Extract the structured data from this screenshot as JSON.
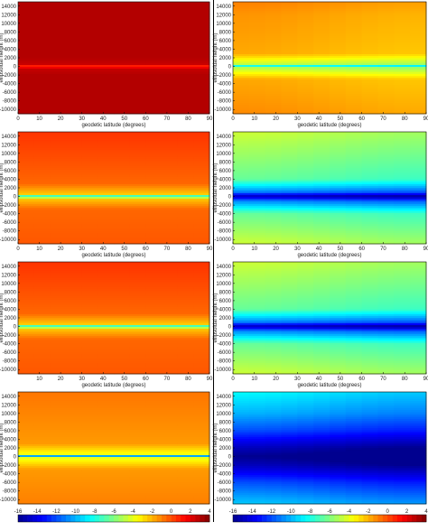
{
  "palette": [
    "#00008f",
    "#0000ff",
    "#0080ff",
    "#00ffff",
    "#80ff80",
    "#ffff00",
    "#ff8000",
    "#ff0000",
    "#800000"
  ],
  "chart_data": [
    {
      "type": "heatmap",
      "panel": "left-1",
      "xlabel": "geodetic latitude (degrees)",
      "ylabel": "ellipsoidal height (m)",
      "xlim": [
        0,
        90
      ],
      "ylim": [
        -11000,
        15000
      ],
      "xticks": [
        "0",
        "10",
        "20",
        "30",
        "40",
        "50",
        "60",
        "70",
        "80",
        "90"
      ],
      "yticks": [
        "-10000",
        "-8000",
        "-6000",
        "-4000",
        "-2000",
        "0",
        "2000",
        "4000",
        "6000",
        "8000",
        "10000",
        "12000",
        "14000"
      ],
      "profile": {
        "h": [
          -11000,
          -6000,
          -2000,
          -500,
          0,
          500,
          2000,
          6000,
          15000
        ],
        "v": [
          3,
          3,
          3,
          2.6,
          0.5,
          2.6,
          3,
          3,
          3
        ]
      },
      "lat_effect": 0
    },
    {
      "type": "heatmap",
      "panel": "right-1",
      "xlabel": "geodetic latitude (degrees)",
      "ylabel": "ellipsoidal height (m)",
      "xlim": [
        0,
        90
      ],
      "ylim": [
        -11000,
        15000
      ],
      "xticks": [
        "0",
        "10",
        "20",
        "30",
        "40",
        "50",
        "60",
        "70",
        "80",
        "90"
      ],
      "yticks": [
        "-10000",
        "-8000",
        "-6000",
        "-4000",
        "-2000",
        "0",
        "2000",
        "4000",
        "6000",
        "8000",
        "10000",
        "12000",
        "14000"
      ],
      "profile": {
        "h": [
          -11000,
          -3000,
          -300,
          0,
          300,
          3000,
          12000,
          15000
        ],
        "v": [
          -1.2,
          -1.8,
          -5,
          -10,
          -5,
          -1.8,
          -1.4,
          -1.0
        ]
      },
      "lat_effect": -0.6
    },
    {
      "type": "heatmap",
      "panel": "left-2",
      "xlabel": "geodetic latitude (degrees)",
      "ylabel": "ellipsoidal height (m)",
      "xlim": [
        0,
        90
      ],
      "ylim": [
        -11000,
        15000
      ],
      "xticks": [
        "0",
        "10",
        "20",
        "30",
        "40",
        "50",
        "60",
        "70",
        "80",
        "90"
      ],
      "yticks": [
        "-10000",
        "-8000",
        "-6000",
        "-4000",
        "-2000",
        "0",
        "2000",
        "4000",
        "6000",
        "8000",
        "10000",
        "12000",
        "14000"
      ],
      "profile": {
        "h": [
          -11000,
          -3000,
          -500,
          0,
          500,
          3000,
          15000
        ],
        "v": [
          -0.2,
          -0.5,
          -2.5,
          -8.5,
          -2.5,
          -0.5,
          0.5
        ]
      },
      "lat_effect": 0
    },
    {
      "type": "heatmap",
      "panel": "right-2",
      "xlabel": "geodetic latitude (degrees)",
      "ylabel": "ellipsoidal height (m)",
      "xlim": [
        0,
        90
      ],
      "ylim": [
        -11000,
        15000
      ],
      "xticks": [
        "0",
        "10",
        "20",
        "30",
        "40",
        "50",
        "60",
        "70",
        "80",
        "90"
      ],
      "yticks": [
        "-10000",
        "-8000",
        "-6000",
        "-4000",
        "-2000",
        "0",
        "2000",
        "4000",
        "6000",
        "8000",
        "10000",
        "12000",
        "14000"
      ],
      "profile": {
        "h": [
          -11000,
          -4000,
          -1000,
          0,
          1000,
          4000,
          15000
        ],
        "v": [
          -4.5,
          -6.5,
          -11,
          -15,
          -11,
          -6.5,
          -4.5
        ]
      },
      "lat_effect": -0.8
    },
    {
      "type": "heatmap",
      "panel": "left-3",
      "xlabel": "geodetic latitude (degrees)",
      "ylabel": "ellipsoidal height (m)",
      "xlim": [
        0,
        90
      ],
      "ylim": [
        -11000,
        15000
      ],
      "xticks": [
        "10",
        "20",
        "30",
        "40",
        "50",
        "60",
        "70",
        "80",
        "90"
      ],
      "yticks": [
        "-10000",
        "-8000",
        "-6000",
        "-4000",
        "-2000",
        "0",
        "2000",
        "4000",
        "6000",
        "8000",
        "10000",
        "12000",
        "14000"
      ],
      "profile": {
        "h": [
          -11000,
          -3000,
          -500,
          0,
          500,
          3000,
          15000
        ],
        "v": [
          -0.2,
          -0.5,
          -2.5,
          -8.5,
          -2.5,
          -0.5,
          0.5
        ]
      },
      "lat_effect": 0
    },
    {
      "type": "heatmap",
      "panel": "right-3",
      "xlabel": "geodetic latitude (degrees)",
      "ylabel": "ellipsoidal height (m)",
      "xlim": [
        0,
        90
      ],
      "ylim": [
        -11000,
        15000
      ],
      "xticks": [
        "0",
        "10",
        "20",
        "30",
        "40",
        "50",
        "60",
        "70",
        "80",
        "90"
      ],
      "yticks": [
        "-10000",
        "-8000",
        "-6000",
        "-4000",
        "-2000",
        "0",
        "2000",
        "4000",
        "6000",
        "8000",
        "10000",
        "12000",
        "14000"
      ],
      "profile": {
        "h": [
          -11000,
          -4000,
          -1000,
          0,
          1000,
          4000,
          15000
        ],
        "v": [
          -4.5,
          -6.5,
          -11,
          -15,
          -11,
          -6.5,
          -4.5
        ]
      },
      "lat_effect": -0.8
    },
    {
      "type": "heatmap",
      "panel": "left-4",
      "xlabel": "",
      "ylabel": "ellipsoidal height (m)",
      "xlim": [
        0,
        90
      ],
      "ylim": [
        -11000,
        15000
      ],
      "xticks": [],
      "yticks": [
        "-10000",
        "-8000",
        "-6000",
        "-4000",
        "-2000",
        "0",
        "2000",
        "4000",
        "6000",
        "8000",
        "10000",
        "12000",
        "14000"
      ],
      "profile": {
        "h": [
          -11000,
          -3000,
          -300,
          0,
          300,
          3000,
          15000
        ],
        "v": [
          -1.0,
          -1.5,
          -4,
          -14,
          -4,
          -1.5,
          -0.8
        ]
      },
      "lat_effect": 0
    },
    {
      "type": "heatmap",
      "panel": "right-4",
      "xlabel": "",
      "ylabel": "ellipsoidal height (m)",
      "xlim": [
        0,
        90
      ],
      "ylim": [
        -11000,
        15000
      ],
      "xticks": [],
      "yticks": [
        "-10000",
        "-8000",
        "-6000",
        "-4000",
        "-2000",
        "0",
        "2000",
        "4000",
        "6000",
        "8000",
        "10000",
        "12000",
        "14000"
      ],
      "profile": {
        "h": [
          -11000,
          -6000,
          -2000,
          0,
          2000,
          6000,
          10000,
          15000
        ],
        "v": [
          -9.5,
          -12,
          -15,
          -16,
          -15,
          -12,
          -10,
          -8.5
        ]
      },
      "lat_effect": -1.0
    }
  ],
  "colorbars": [
    {
      "name": "left",
      "vmin": -16,
      "vmax": 4,
      "ticks": [
        "-16",
        "-14",
        "-12",
        "-10",
        "-8",
        "-6",
        "-4",
        "-2",
        "0",
        "2",
        "4"
      ]
    },
    {
      "name": "right",
      "vmin": -16,
      "vmax": 4,
      "ticks": [
        "-16",
        "-14",
        "-12",
        "-10",
        "-8",
        "-6",
        "-4",
        "-2",
        "0",
        "2",
        "4"
      ]
    }
  ]
}
